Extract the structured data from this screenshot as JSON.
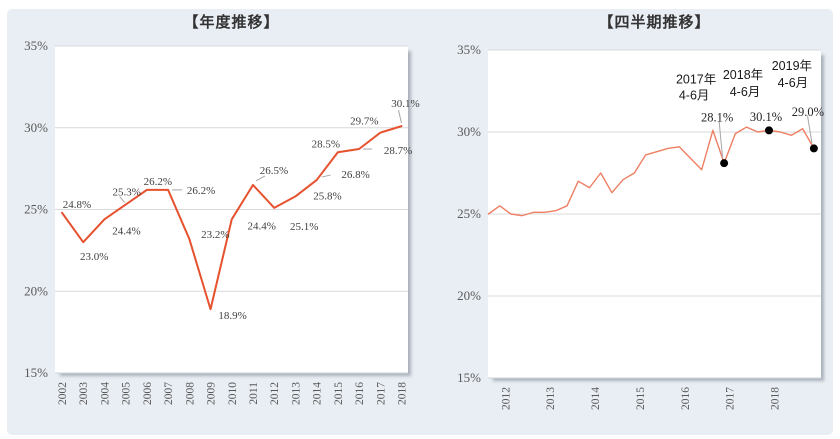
{
  "page": {
    "background": "#ffffff",
    "panel_color": "#e9eef4"
  },
  "chart_data": [
    {
      "type": "line",
      "title": "【年度推移】",
      "categories": [
        "2002",
        "2003",
        "2004",
        "2005",
        "2006",
        "2007",
        "2008",
        "2009",
        "2010",
        "2011",
        "2012",
        "2013",
        "2014",
        "2015",
        "2016",
        "2017",
        "2018"
      ],
      "values": [
        24.8,
        23.0,
        24.4,
        25.3,
        26.2,
        26.2,
        23.2,
        18.9,
        24.4,
        26.5,
        25.1,
        25.8,
        26.8,
        28.5,
        28.7,
        29.7,
        30.1
      ],
      "data_labels": [
        "24.8%",
        "23.0%",
        "24.4%",
        "25.3%",
        "26.2%",
        "26.2%",
        "23.2%",
        "18.9%",
        "24.4%",
        "26.5%",
        "25.1%",
        "25.8%",
        "26.8%",
        "28.5%",
        "28.7%",
        "29.7%",
        "30.1%"
      ],
      "ylim": [
        15,
        35
      ],
      "y_ticks": [
        35,
        30,
        25,
        20,
        15
      ],
      "y_tick_labels": [
        "35%",
        "30%",
        "25%",
        "20%",
        "15%"
      ],
      "grid": "horizontal",
      "legend": "none",
      "line_color": "#e6512e",
      "gridline_color": "#d9d9d9",
      "leader_line_color": "#a6a6a6"
    },
    {
      "type": "line",
      "title": "【四半期推移】",
      "categories": [
        "2012Q1",
        "2012Q2",
        "2012Q3",
        "2012Q4",
        "2013Q1",
        "2013Q2",
        "2013Q3",
        "2013Q4",
        "2014Q1",
        "2014Q2",
        "2014Q3",
        "2014Q4",
        "2015Q1",
        "2015Q2",
        "2015Q3",
        "2015Q4",
        "2016Q1",
        "2016Q2",
        "2016Q3",
        "2016Q4",
        "2017Q1",
        "2017Q2",
        "2017Q3",
        "2017Q4",
        "2018Q1",
        "2018Q2",
        "2018Q3",
        "2018Q4",
        "2019Q1",
        "2019Q2"
      ],
      "values": [
        25.0,
        25.5,
        25.0,
        24.9,
        25.1,
        25.1,
        25.2,
        25.5,
        27.0,
        26.6,
        27.5,
        26.3,
        27.1,
        27.5,
        28.6,
        28.8,
        29.0,
        29.1,
        28.4,
        27.7,
        30.1,
        28.1,
        29.9,
        30.3,
        30.0,
        30.1,
        30.0,
        29.8,
        30.2,
        29.0
      ],
      "x_axis_year_labels": [
        "2012",
        "2013",
        "2014",
        "2015",
        "2016",
        "2017",
        "2018"
      ],
      "ylim": [
        15,
        35
      ],
      "y_ticks": [
        35,
        30,
        25,
        20,
        15
      ],
      "y_tick_labels": [
        "35%",
        "30%",
        "25%",
        "20%",
        "15%"
      ],
      "grid": "horizontal",
      "legend": "none",
      "line_color": "#ee7f63",
      "marker_color": "#000000",
      "gridline_color": "#d9d9d9",
      "leader_line_color": "#a6a6a6",
      "annotations": [
        {
          "category": "2017Q2",
          "index": 21,
          "period_label": "2017年",
          "quarter_label": "4-6月",
          "value": 28.1,
          "value_label": "28.1%"
        },
        {
          "category": "2018Q2",
          "index": 25,
          "period_label": "2018年",
          "quarter_label": "4-6月",
          "value": 30.1,
          "value_label": "30.1%"
        },
        {
          "category": "2019Q2",
          "index": 29,
          "period_label": "2019年",
          "quarter_label": "4-6月",
          "value": 29.0,
          "value_label": "29.0%"
        }
      ]
    }
  ]
}
